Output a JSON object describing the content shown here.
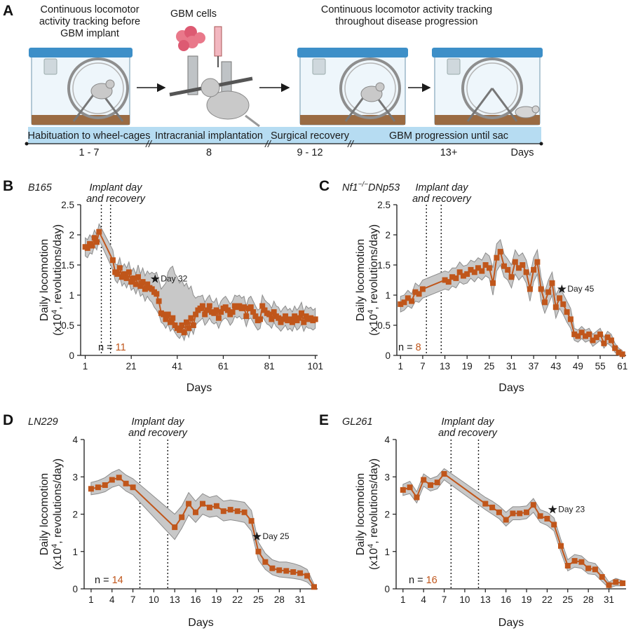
{
  "colors": {
    "accent": "#c0561b",
    "band": "#c8c8c8",
    "bandStroke": "#8c8c8c",
    "timeline": "#b6dcf2",
    "cageLid": "#3d8fc8"
  },
  "panel_a": {
    "letter": "A",
    "texts": {
      "before": [
        "Continuous locomotor",
        "activity tracking before",
        "GBM implant"
      ],
      "cells": "GBM cells",
      "throughout": [
        "Continuous locomotor activity tracking",
        "throughout disease progression"
      ]
    },
    "timeline": {
      "phases": [
        "Habituation to wheel-cages",
        "Intracranial implantation",
        "Surgical recovery",
        "GBM progression until sac"
      ],
      "days": [
        "1 - 7",
        "8",
        "9 - 12",
        "13+"
      ],
      "unit": "Days"
    },
    "icons": [
      "wheel-cage-icon",
      "mouse-icon",
      "stereotaxic-frame-icon",
      "syringe-icon",
      "cell-cluster-icon",
      "arrow-right-icon"
    ]
  },
  "chart_data": [
    {
      "id": "B",
      "type": "line",
      "letter": "B",
      "title": "B165",
      "annotation": [
        "Implant day",
        "and recovery"
      ],
      "implant_lines": [
        8,
        12
      ],
      "star": {
        "text": "Day 32",
        "x": 32
      },
      "n_label": "n = ",
      "n_value": "11",
      "xlabel": "Days",
      "ylabel": [
        "Daily locomotion",
        "(x10",
        "4",
        ", revolutions/day)"
      ],
      "xlim": [
        -1,
        102
      ],
      "ylim": [
        0,
        2.5
      ],
      "xticks": [
        1,
        21,
        41,
        61,
        81,
        101
      ],
      "yticks": [
        0,
        0.5,
        1,
        1.5,
        2,
        2.5
      ],
      "ytick_labels": [
        "0",
        "0.5",
        "1",
        "1.5",
        "2",
        "2.5"
      ],
      "series": [
        {
          "x": [
            1,
            2,
            3,
            4,
            5,
            6,
            7,
            13,
            14,
            15,
            16,
            17,
            18,
            19,
            20,
            21,
            22,
            23,
            24,
            25,
            26,
            27,
            28,
            29,
            30,
            31,
            32,
            33,
            34,
            35,
            36,
            37,
            38,
            39,
            40,
            41,
            42,
            43,
            44,
            45,
            46,
            47,
            48,
            49,
            50,
            51,
            52,
            53,
            54,
            55,
            56,
            57,
            58,
            59,
            60,
            61,
            62,
            63,
            64,
            65,
            66,
            67,
            68,
            69,
            70,
            71,
            72,
            73,
            74,
            75,
            76,
            77,
            78,
            79,
            80,
            81,
            82,
            83,
            84,
            85,
            86,
            87,
            88,
            89,
            90,
            91,
            92,
            93,
            94,
            95,
            96,
            97,
            98,
            99,
            100,
            101
          ],
          "y": [
            1.8,
            1.78,
            1.85,
            1.82,
            1.95,
            1.88,
            2.05,
            1.58,
            1.38,
            1.35,
            1.45,
            1.3,
            1.35,
            1.28,
            1.38,
            1.22,
            1.28,
            1.18,
            1.3,
            1.15,
            1.22,
            1.1,
            1.18,
            1.12,
            1.1,
            1.05,
            1.02,
            0.9,
            0.7,
            0.68,
            0.6,
            0.68,
            0.55,
            0.62,
            0.5,
            0.45,
            0.42,
            0.5,
            0.38,
            0.55,
            0.45,
            0.62,
            0.5,
            0.68,
            0.75,
            0.78,
            0.82,
            0.68,
            0.75,
            0.82,
            0.72,
            0.7,
            0.75,
            0.62,
            0.72,
            0.78,
            0.8,
            0.75,
            0.68,
            0.72,
            0.82,
            0.8,
            0.82,
            0.78,
            0.8,
            0.65,
            0.78,
            0.8,
            0.72,
            0.65,
            0.58,
            0.6,
            0.82,
            0.75,
            0.7,
            0.68,
            0.6,
            0.72,
            0.65,
            0.62,
            0.55,
            0.6,
            0.65,
            0.58,
            0.6,
            0.55,
            0.65,
            0.58,
            0.62,
            0.7,
            0.55,
            0.65,
            0.6,
            0.62,
            0.58,
            0.6
          ],
          "lo": [
            1.65,
            1.62,
            1.7,
            1.68,
            1.82,
            1.75,
            1.92,
            1.42,
            1.25,
            1.2,
            1.3,
            1.15,
            1.2,
            1.12,
            1.22,
            1.08,
            1.12,
            1.02,
            1.12,
            0.98,
            1.02,
            0.9,
            0.98,
            0.92,
            0.88,
            0.8,
            0.75,
            0.68,
            0.55,
            0.52,
            0.45,
            0.52,
            0.4,
            0.45,
            0.38,
            0.32,
            0.28,
            0.35,
            0.25,
            0.4,
            0.3,
            0.45,
            0.35,
            0.5,
            0.55,
            0.58,
            0.62,
            0.5,
            0.55,
            0.62,
            0.55,
            0.52,
            0.55,
            0.45,
            0.55,
            0.6,
            0.62,
            0.58,
            0.5,
            0.55,
            0.65,
            0.62,
            0.65,
            0.6,
            0.62,
            0.48,
            0.6,
            0.62,
            0.55,
            0.48,
            0.42,
            0.45,
            0.65,
            0.58,
            0.52,
            0.5,
            0.45,
            0.55,
            0.48,
            0.45,
            0.4,
            0.45,
            0.5,
            0.42,
            0.45,
            0.4,
            0.5,
            0.42,
            0.45,
            0.52,
            0.4,
            0.48,
            0.45,
            0.45,
            0.42,
            0.45
          ],
          "hi": [
            1.95,
            1.92,
            2.0,
            1.95,
            2.08,
            2.0,
            2.18,
            1.75,
            1.52,
            1.5,
            1.62,
            1.45,
            1.52,
            1.45,
            1.55,
            1.38,
            1.45,
            1.35,
            1.5,
            1.35,
            1.45,
            1.32,
            1.4,
            1.35,
            1.38,
            1.35,
            1.38,
            1.25,
            1.1,
            1.15,
            1.2,
            1.38,
            1.45,
            1.48,
            1.35,
            1.3,
            1.2,
            1.25,
            1.15,
            1.2,
            1.1,
            1.15,
            1.0,
            0.95,
            0.98,
            0.98,
            1.0,
            0.88,
            0.95,
            1.0,
            0.9,
            0.88,
            0.95,
            0.8,
            0.9,
            0.95,
            0.98,
            0.92,
            0.85,
            0.9,
            1.0,
            0.98,
            1.0,
            0.95,
            0.98,
            0.82,
            0.95,
            0.98,
            0.9,
            0.82,
            0.75,
            0.78,
            1.0,
            0.92,
            0.88,
            0.85,
            0.78,
            0.9,
            0.82,
            0.8,
            0.72,
            0.78,
            0.82,
            0.75,
            0.78,
            0.72,
            0.82,
            0.75,
            0.8,
            0.88,
            0.72,
            0.82,
            0.78,
            0.8,
            0.75,
            0.78
          ]
        }
      ]
    },
    {
      "id": "C",
      "type": "line",
      "letter": "C",
      "title": "Nf1−/−DNp53",
      "title_parts": [
        "Nf1",
        "−/−",
        "DNp53"
      ],
      "annotation": [
        "Implant day",
        "and recovery"
      ],
      "implant_lines": [
        8,
        12
      ],
      "star": {
        "text": "Day 45",
        "x": 45
      },
      "n_label": "n = ",
      "n_value": "8",
      "xlabel": "Days",
      "ylabel": [
        "Daily locomotion",
        "(x10",
        "4",
        ", revolutions/day)"
      ],
      "xlim": [
        0,
        62
      ],
      "ylim": [
        0,
        2.5
      ],
      "xticks": [
        1,
        7,
        13,
        19,
        25,
        31,
        37,
        43,
        49,
        55,
        61
      ],
      "yticks": [
        0,
        0.5,
        1,
        1.5,
        2,
        2.5
      ],
      "ytick_labels": [
        "0",
        "0.5",
        "1",
        "1.5",
        "2",
        "2.5"
      ],
      "series": [
        {
          "x": [
            1,
            2,
            3,
            4,
            5,
            6,
            7,
            13,
            14,
            15,
            16,
            17,
            18,
            19,
            20,
            21,
            22,
            23,
            24,
            25,
            26,
            27,
            28,
            29,
            30,
            31,
            32,
            33,
            34,
            35,
            36,
            37,
            38,
            39,
            40,
            41,
            42,
            43,
            44,
            45,
            46,
            47,
            48,
            49,
            50,
            51,
            52,
            53,
            54,
            55,
            56,
            57,
            58,
            59,
            60,
            61
          ],
          "y": [
            0.85,
            0.88,
            0.95,
            0.9,
            1.05,
            1.02,
            1.1,
            1.25,
            1.22,
            1.3,
            1.28,
            1.38,
            1.32,
            1.35,
            1.42,
            1.38,
            1.45,
            1.4,
            1.5,
            1.45,
            1.2,
            1.62,
            1.72,
            1.48,
            1.42,
            1.3,
            1.55,
            1.45,
            1.5,
            1.38,
            1.1,
            1.42,
            1.55,
            1.1,
            0.88,
            1.05,
            1.2,
            0.8,
            0.95,
            0.85,
            0.72,
            0.6,
            0.35,
            0.32,
            0.38,
            0.32,
            0.35,
            0.25,
            0.3,
            0.35,
            0.2,
            0.3,
            0.25,
            0.12,
            0.05,
            0.02
          ],
          "lo": [
            0.72,
            0.75,
            0.82,
            0.78,
            0.9,
            0.88,
            0.95,
            1.1,
            1.08,
            1.15,
            1.12,
            1.22,
            1.18,
            1.2,
            1.28,
            1.22,
            1.3,
            1.25,
            1.32,
            1.28,
            1.0,
            1.4,
            1.5,
            1.3,
            1.25,
            1.12,
            1.35,
            1.25,
            1.32,
            1.2,
            0.9,
            1.22,
            1.35,
            0.9,
            0.7,
            0.85,
            1.0,
            0.62,
            0.78,
            0.68,
            0.55,
            0.45,
            0.25,
            0.22,
            0.28,
            0.22,
            0.25,
            0.15,
            0.2,
            0.25,
            0.12,
            0.2,
            0.15,
            0.05,
            0.0,
            0.0
          ],
          "hi": [
            0.98,
            1.0,
            1.08,
            1.02,
            1.2,
            1.15,
            1.25,
            1.4,
            1.38,
            1.45,
            1.45,
            1.55,
            1.48,
            1.5,
            1.58,
            1.55,
            1.62,
            1.58,
            1.7,
            1.65,
            1.45,
            1.85,
            1.92,
            1.68,
            1.6,
            1.5,
            1.75,
            1.65,
            1.7,
            1.58,
            1.32,
            1.62,
            1.75,
            1.3,
            1.05,
            1.25,
            1.38,
            1.0,
            1.12,
            1.02,
            0.9,
            0.78,
            0.45,
            0.42,
            0.48,
            0.42,
            0.45,
            0.35,
            0.4,
            0.45,
            0.3,
            0.4,
            0.35,
            0.2,
            0.12,
            0.08
          ]
        }
      ]
    },
    {
      "id": "D",
      "type": "line",
      "letter": "D",
      "title": "LN229",
      "annotation": [
        "Implant day",
        "and recovery"
      ],
      "implant_lines": [
        8,
        12
      ],
      "star": {
        "text": "Day 25",
        "x": 25
      },
      "n_label": "n = ",
      "n_value": "14",
      "xlabel": "Days",
      "ylabel": [
        "Daily locomotion",
        "(x10",
        "4",
        ", revolutions/day)"
      ],
      "xlim": [
        0,
        33.5
      ],
      "ylim": [
        0,
        4
      ],
      "xticks": [
        1,
        4,
        7,
        10,
        13,
        16,
        19,
        22,
        25,
        28,
        31
      ],
      "yticks": [
        0,
        1,
        2,
        3,
        4
      ],
      "ytick_labels": [
        "0",
        "1",
        "2",
        "3",
        "4"
      ],
      "series": [
        {
          "x": [
            1,
            2,
            3,
            4,
            5,
            6,
            7,
            13,
            14,
            15,
            16,
            17,
            18,
            19,
            20,
            21,
            22,
            23,
            24,
            25,
            26,
            27,
            28,
            29,
            30,
            31,
            32,
            33
          ],
          "y": [
            2.68,
            2.72,
            2.78,
            2.92,
            2.98,
            2.82,
            2.72,
            1.65,
            1.92,
            2.28,
            2.05,
            2.28,
            2.18,
            2.22,
            2.08,
            2.12,
            2.08,
            2.05,
            1.82,
            1.0,
            0.72,
            0.55,
            0.5,
            0.48,
            0.45,
            0.42,
            0.35,
            0.05
          ],
          "lo": [
            2.52,
            2.55,
            2.6,
            2.72,
            2.78,
            2.62,
            2.52,
            1.32,
            1.62,
            1.98,
            1.78,
            2.0,
            1.92,
            1.95,
            1.82,
            1.85,
            1.82,
            1.78,
            1.55,
            0.78,
            0.52,
            0.38,
            0.32,
            0.3,
            0.28,
            0.25,
            0.18,
            0.0
          ],
          "hi": [
            2.85,
            2.9,
            2.98,
            3.12,
            3.2,
            3.05,
            2.95,
            2.0,
            2.22,
            2.58,
            2.35,
            2.55,
            2.45,
            2.5,
            2.35,
            2.38,
            2.35,
            2.32,
            2.1,
            1.25,
            0.95,
            0.78,
            0.72,
            0.72,
            0.68,
            0.62,
            0.52,
            0.12
          ]
        }
      ]
    },
    {
      "id": "E",
      "type": "line",
      "letter": "E",
      "title": "GL261",
      "annotation": [
        "Implant day",
        "and recovery"
      ],
      "implant_lines": [
        8,
        12
      ],
      "star": {
        "text": "Day 23",
        "x": 23
      },
      "n_label": "n = ",
      "n_value": "16",
      "xlabel": "Days",
      "ylabel": [
        "Daily locomotion",
        "(x10",
        "4",
        ", revolutions/day)"
      ],
      "xlim": [
        0,
        33.5
      ],
      "ylim": [
        0,
        4
      ],
      "xticks": [
        1,
        4,
        7,
        10,
        13,
        16,
        19,
        22,
        25,
        28,
        31
      ],
      "yticks": [
        0,
        1,
        2,
        3,
        4
      ],
      "ytick_labels": [
        "0",
        "1",
        "2",
        "3",
        "4"
      ],
      "series": [
        {
          "x": [
            1,
            2,
            3,
            4,
            5,
            6,
            7,
            13,
            14,
            15,
            16,
            17,
            18,
            19,
            20,
            21,
            22,
            23,
            24,
            25,
            26,
            27,
            28,
            29,
            30,
            31,
            32,
            33
          ],
          "y": [
            2.65,
            2.72,
            2.45,
            2.92,
            2.78,
            2.85,
            3.08,
            2.28,
            2.18,
            2.05,
            1.85,
            2.02,
            2.02,
            2.05,
            2.25,
            1.95,
            1.88,
            1.72,
            1.15,
            0.62,
            0.75,
            0.72,
            0.55,
            0.52,
            0.32,
            0.1,
            0.18,
            0.15
          ],
          "lo": [
            2.5,
            2.55,
            2.3,
            2.75,
            2.62,
            2.68,
            2.92,
            2.12,
            2.0,
            1.88,
            1.68,
            1.85,
            1.85,
            1.88,
            2.05,
            1.78,
            1.7,
            1.55,
            0.98,
            0.48,
            0.58,
            0.55,
            0.4,
            0.38,
            0.2,
            0.02,
            0.08,
            0.08
          ],
          "hi": [
            2.8,
            2.88,
            2.6,
            3.08,
            2.95,
            3.02,
            3.22,
            2.45,
            2.35,
            2.22,
            2.05,
            2.2,
            2.2,
            2.22,
            2.42,
            2.12,
            2.05,
            1.9,
            1.32,
            0.78,
            0.92,
            0.88,
            0.72,
            0.68,
            0.45,
            0.18,
            0.28,
            0.22
          ]
        }
      ]
    }
  ]
}
